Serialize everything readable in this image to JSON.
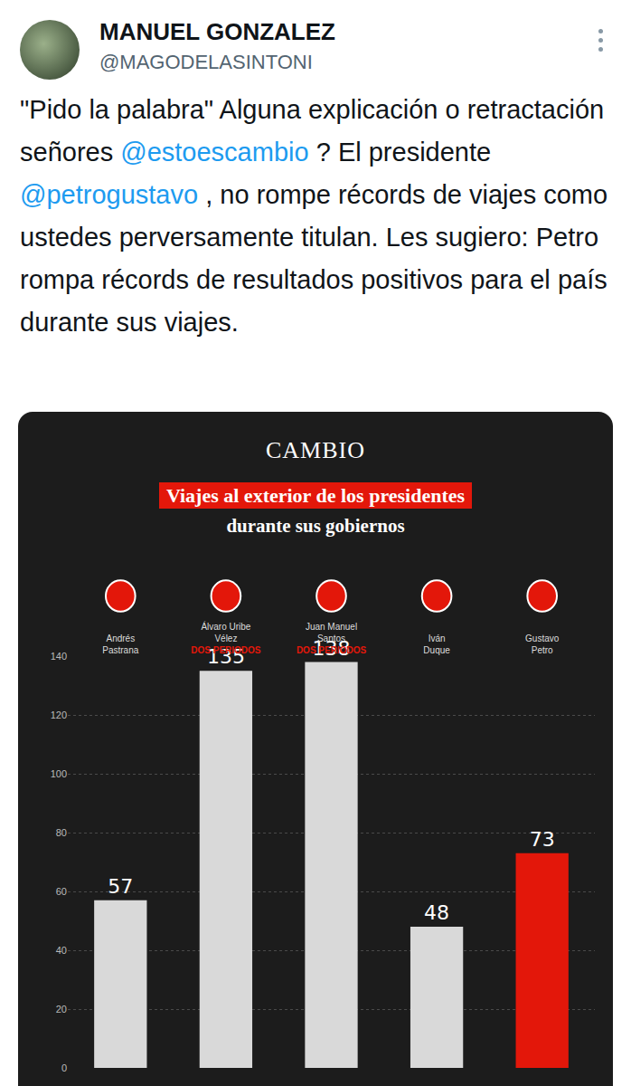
{
  "tweet": {
    "author": "MANUEL GONZALEZ",
    "handle": "@MAGODELASINTONI",
    "text": "\"Pido la palabra\" Alguna explicación o retractación señores @estoescambio ? El presidente @petrogustavo , no rompe récords de viajes como ustedes perversamente titulan. Les sugiero: Petro rompa récords de resultados positivos para el país durante sus viajes."
  },
  "chart_data": {
    "type": "bar",
    "brand": "CAMBIO",
    "title": "Viajes al exterior de los presidentes",
    "subtitle": "durante sus gobiernos",
    "categories": [
      "Andrés Pastrana",
      "Álvaro Uribe Vélez",
      "Juan Manuel Santos",
      "Iván Duque",
      "Gustavo Petro"
    ],
    "category_notes": [
      null,
      "DOS PERIODOS",
      "DOS PERIODOS",
      null,
      null
    ],
    "values": [
      57,
      135,
      138,
      48,
      73
    ],
    "colors": [
      "#d9d9d9",
      "#d9d9d9",
      "#d9d9d9",
      "#d9d9d9",
      "#e3170a"
    ],
    "ylim": [
      0,
      140
    ],
    "yticks": [
      0,
      20,
      40,
      60,
      80,
      100,
      120,
      140
    ],
    "grid": true,
    "data_labels": true
  }
}
